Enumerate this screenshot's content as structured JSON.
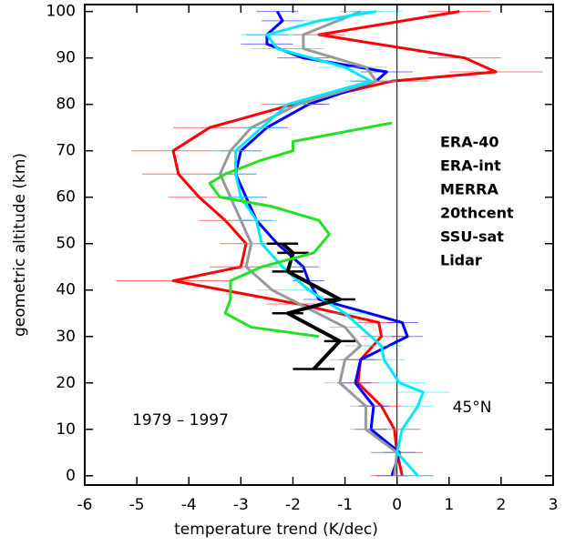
{
  "chart_data": {
    "type": "profile",
    "xlabel": "temperature trend (K/dec)",
    "ylabel": "geometric altitude (km)",
    "xlim": [
      -6,
      3
    ],
    "xticks": [
      -6,
      -5,
      -4,
      -3,
      -2,
      -1,
      0,
      1,
      2,
      3
    ],
    "ylim": [
      -2,
      101.5
    ],
    "yticks": [
      0,
      10,
      20,
      30,
      40,
      50,
      60,
      70,
      80,
      90,
      100
    ],
    "vline": 0,
    "annotations": [
      "1979 – 1997",
      "45°N"
    ],
    "series": [
      {
        "name": "ERA-40",
        "color": "#ff0000",
        "altitude": [
          0,
          5,
          10,
          15,
          20,
          25,
          30,
          33,
          37,
          42,
          45,
          50,
          55,
          60,
          65,
          70,
          75,
          80,
          85,
          87,
          90,
          95,
          100
        ],
        "values": [
          0.1,
          0.0,
          -0.05,
          -0.3,
          -0.75,
          -0.7,
          -0.3,
          -0.35,
          -1.9,
          -4.3,
          -3.0,
          -2.9,
          -3.3,
          -3.8,
          -4.2,
          -4.3,
          -3.6,
          -2.0,
          -0.1,
          1.9,
          1.3,
          -1.5,
          1.2
        ],
        "errors": [
          0.6,
          0.5,
          0.5,
          0.4,
          0.4,
          0.4,
          0.4,
          0.4,
          0.6,
          1.1,
          0.6,
          0.5,
          0.5,
          0.6,
          0.7,
          0.8,
          0.7,
          0.6,
          0.7,
          0.9,
          0.7,
          0.5,
          0.6
        ]
      },
      {
        "name": "ERA-int",
        "color": "#0000ff",
        "altitude": [
          0,
          5,
          10,
          15,
          20,
          25,
          30,
          33,
          38,
          42,
          45,
          50,
          55,
          60,
          65,
          70,
          75,
          80,
          85,
          87,
          90,
          93,
          95,
          98,
          100
        ],
        "values": [
          -0.1,
          0.05,
          -0.5,
          -0.45,
          -0.8,
          -0.7,
          0.2,
          0.1,
          -1.5,
          -1.7,
          -1.8,
          -2.3,
          -2.7,
          -2.9,
          -3.1,
          -3.0,
          -2.5,
          -1.7,
          -0.4,
          -0.2,
          -1.8,
          -2.5,
          -2.5,
          -2.2,
          -2.3
        ],
        "errors": [
          0.3,
          0.3,
          0.3,
          0.3,
          0.3,
          0.3,
          0.3,
          0.3,
          0.3,
          0.3,
          0.3,
          0.3,
          0.3,
          0.4,
          0.4,
          0.4,
          0.4,
          0.4,
          0.5,
          0.5,
          0.5,
          0.5,
          0.4,
          0.4,
          0.4
        ]
      },
      {
        "name": "MERRA",
        "color": "#999999",
        "altitude": [
          0,
          5,
          10,
          15,
          20,
          25,
          28,
          32,
          40,
          45,
          50,
          55,
          60,
          65,
          70,
          75,
          80,
          85,
          88,
          92,
          95,
          100
        ],
        "values": [
          -0.05,
          0.0,
          -0.6,
          -0.6,
          -1.1,
          -1.0,
          -0.7,
          -1.0,
          -2.4,
          -2.9,
          -2.8,
          -3.0,
          -3.2,
          -3.4,
          -3.2,
          -2.8,
          -1.9,
          -0.4,
          -0.6,
          -1.8,
          -1.8,
          -0.7
        ],
        "errors": [
          0.3,
          0.3,
          0.3,
          0.3,
          0.3,
          0.3,
          0.3,
          0.3,
          0.3,
          0.3,
          0.3,
          0.3,
          0.3,
          0.3,
          0.3,
          0.3,
          0.3,
          0.4,
          0.4,
          0.4,
          0.4,
          0.4
        ]
      },
      {
        "name": "20thcent",
        "color": "#00e8ff",
        "altitude": [
          0,
          5,
          10,
          15,
          18,
          20,
          25,
          28,
          35,
          40,
          45,
          50,
          55,
          60,
          65,
          70,
          75,
          80,
          85,
          88,
          92,
          95,
          98,
          100
        ],
        "values": [
          0.4,
          0.0,
          0.1,
          0.4,
          0.5,
          0.05,
          -0.25,
          -0.3,
          -1.0,
          -1.7,
          -2.2,
          -2.6,
          -2.7,
          -3.0,
          -3.1,
          -3.1,
          -2.6,
          -2.1,
          -0.5,
          -1.0,
          -2.3,
          -2.5,
          -1.5,
          -0.4
        ],
        "errors": [
          0.3,
          0.3,
          0.3,
          0.3,
          0.5,
          0.5,
          0.4,
          0.4,
          0.4,
          0.4,
          0.4,
          0.4,
          0.4,
          0.4,
          0.4,
          0.4,
          0.4,
          0.4,
          0.5,
          0.5,
          0.5,
          0.5,
          0.5,
          0.5
        ]
      },
      {
        "name": "SSU-sat",
        "color": "#000000",
        "altitude": [
          23,
          29,
          35,
          38,
          44,
          48,
          50
        ],
        "values": [
          -1.6,
          -1.1,
          -2.1,
          -1.1,
          -2.1,
          -2.0,
          -2.2
        ],
        "errors": [
          0.4,
          0.3,
          0.3,
          0.3,
          0.3,
          0.3,
          0.3
        ]
      },
      {
        "name": "Lidar",
        "color": "#22e022",
        "altitude": [
          30,
          32,
          35,
          38,
          42,
          45,
          48,
          52,
          55,
          58,
          60,
          63,
          65,
          68,
          70,
          72,
          76
        ],
        "values": [
          -1.5,
          -2.8,
          -3.3,
          -3.2,
          -3.2,
          -2.6,
          -1.6,
          -1.3,
          -1.5,
          -2.4,
          -3.4,
          -3.6,
          -3.3,
          -2.6,
          -2.0,
          -2.0,
          -0.1
        ]
      }
    ]
  }
}
